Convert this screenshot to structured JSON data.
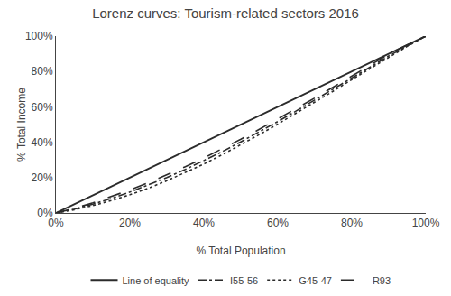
{
  "chart_data": {
    "type": "line",
    "title": "Lorenz curves: Tourism-related sectors 2016",
    "xlabel": "% Total Population",
    "ylabel": "% Total Income",
    "x": [
      0.0,
      0.05,
      0.1,
      0.15,
      0.2,
      0.25,
      0.3,
      0.35,
      0.4,
      0.45,
      0.5,
      0.55,
      0.6,
      0.65,
      0.7,
      0.75,
      0.8,
      0.85,
      0.9,
      0.95,
      1.0
    ],
    "series": [
      {
        "name": "Line of equality",
        "color": "#2b2b2b",
        "line_style": "solid",
        "x": [
          0,
          1
        ],
        "values": [
          0,
          1
        ]
      },
      {
        "name": "I55-56",
        "color": "#2b2b2b",
        "line_style": "dashdot",
        "values": [
          0.0,
          0.022,
          0.05,
          0.082,
          0.118,
          0.157,
          0.2,
          0.246,
          0.295,
          0.347,
          0.402,
          0.458,
          0.517,
          0.577,
          0.638,
          0.7,
          0.762,
          0.825,
          0.888,
          0.945,
          1.0
        ]
      },
      {
        "name": "G45-47",
        "color": "#2b2b2b",
        "line_style": "dotted",
        "values": [
          0.0,
          0.018,
          0.042,
          0.07,
          0.103,
          0.14,
          0.182,
          0.228,
          0.277,
          0.33,
          0.386,
          0.443,
          0.503,
          0.564,
          0.626,
          0.689,
          0.754,
          0.818,
          0.882,
          0.942,
          1.0
        ]
      },
      {
        "name": "R93",
        "color": "#2b2b2b",
        "line_style": "longdash",
        "values": [
          0.0,
          0.026,
          0.057,
          0.092,
          0.13,
          0.171,
          0.215,
          0.262,
          0.311,
          0.363,
          0.417,
          0.473,
          0.531,
          0.59,
          0.65,
          0.712,
          0.774,
          0.836,
          0.898,
          0.95,
          1.0
        ]
      }
    ],
    "xlim": [
      0,
      1
    ],
    "ylim": [
      0,
      1
    ],
    "xticks": [
      {
        "value": 0,
        "label": "0%"
      },
      {
        "value": 0.2,
        "label": "20%"
      },
      {
        "value": 0.4,
        "label": "40%"
      },
      {
        "value": 0.6,
        "label": "60%"
      },
      {
        "value": 0.8,
        "label": "80%"
      },
      {
        "value": 1.0,
        "label": "100%"
      }
    ],
    "yticks": [
      {
        "value": 0,
        "label": "0%"
      },
      {
        "value": 0.2,
        "label": "20%"
      },
      {
        "value": 0.4,
        "label": "40%"
      },
      {
        "value": 0.6,
        "label": "60%"
      },
      {
        "value": 0.8,
        "label": "80%"
      },
      {
        "value": 1.0,
        "label": "100%"
      }
    ],
    "grid": false,
    "legend": "bottom"
  }
}
